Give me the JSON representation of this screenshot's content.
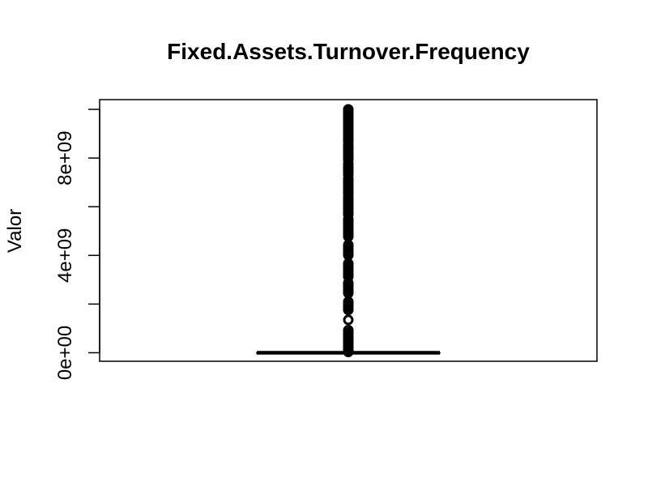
{
  "chart_data": {
    "type": "box",
    "title": "Fixed.Assets.Turnover.Frequency",
    "xlabel": "",
    "ylabel": "Valor",
    "ylim": [
      -350000000,
      10400000000
    ],
    "yticks": [
      0,
      2000000000,
      4000000000,
      6000000000,
      8000000000,
      10000000000
    ],
    "ytick_labels": [
      "0e+00",
      "",
      "4e+09",
      "",
      "8e+09",
      ""
    ],
    "box": {
      "min": 0,
      "q1": 0,
      "median": 0,
      "q3": 0,
      "max": 0
    },
    "outliers": [
      30000000,
      90000000,
      160000000,
      230000000,
      310000000,
      380000000,
      460000000,
      530000000,
      610000000,
      680000000,
      760000000,
      850000000,
      930000000,
      1350000000,
      1760000000,
      1840000000,
      1930000000,
      2010000000,
      2100000000,
      2450000000,
      2530000000,
      2620000000,
      2700000000,
      2790000000,
      2870000000,
      3130000000,
      3220000000,
      3310000000,
      3400000000,
      3490000000,
      3580000000,
      3670000000,
      4010000000,
      4090000000,
      4180000000,
      4260000000,
      4350000000,
      4430000000,
      4770000000,
      4860000000,
      4950000000,
      5040000000,
      5130000000,
      5220000000,
      5310000000,
      5400000000,
      5490000000,
      5680000000,
      5770000000,
      5860000000,
      5950000000,
      6040000000,
      6130000000,
      6220000000,
      6310000000,
      6400000000,
      6530000000,
      6620000000,
      6710000000,
      6800000000,
      6890000000,
      6980000000,
      7070000000,
      7160000000,
      7320000000,
      7410000000,
      7500000000,
      7590000000,
      7680000000,
      7770000000,
      7930000000,
      8020000000,
      8110000000,
      8200000000,
      8290000000,
      8380000000,
      8470000000,
      8560000000,
      8700000000,
      8790000000,
      8880000000,
      8970000000,
      9060000000,
      9150000000,
      9240000000,
      9330000000,
      9420000000,
      9510000000,
      9600000000,
      9690000000,
      9780000000,
      9870000000,
      9950000000,
      10000000000
    ],
    "grid": false,
    "colors": {
      "box": "#000000",
      "outliers": "#000000",
      "frame": "#000000"
    }
  }
}
